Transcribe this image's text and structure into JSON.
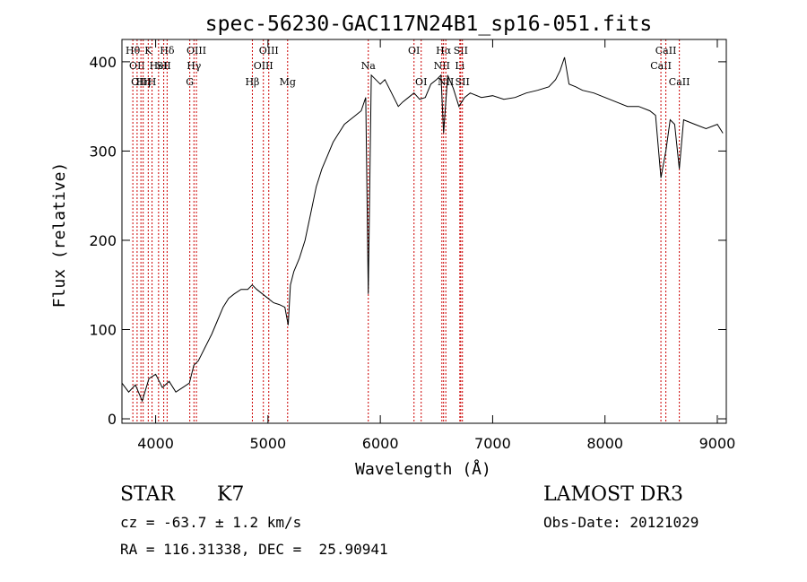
{
  "chart_data": {
    "type": "line",
    "title": "spec-56230-GAC117N24B1_sp16-051.fits",
    "xlabel": "Wavelength (Å)",
    "ylabel": "Flux (relative)",
    "xlim": [
      3700,
      9080
    ],
    "ylim": [
      -5,
      425
    ],
    "xticks": [
      4000,
      5000,
      6000,
      7000,
      8000,
      9000
    ],
    "yticks": [
      0,
      100,
      200,
      300,
      400
    ],
    "line_color": "#000000",
    "marker_color": "#cc0000",
    "grid": false,
    "series": [
      {
        "x": [
          3700,
          3760,
          3820,
          3880,
          3940,
          4000,
          4060,
          4120,
          4180,
          4240,
          4300,
          4340,
          4380,
          4440,
          4500,
          4550,
          4600,
          4650,
          4700,
          4760,
          4820,
          4860,
          4900,
          4950,
          5000,
          5050,
          5100,
          5150,
          5180,
          5200,
          5230,
          5280,
          5330,
          5380,
          5430,
          5480,
          5530,
          5580,
          5630,
          5680,
          5730,
          5780,
          5830,
          5870,
          5893,
          5920,
          5960,
          6000,
          6040,
          6080,
          6120,
          6160,
          6200,
          6250,
          6300,
          6350,
          6400,
          6450,
          6500,
          6540,
          6563,
          6600,
          6650,
          6700,
          6750,
          6800,
          6900,
          7000,
          7100,
          7200,
          7300,
          7400,
          7500,
          7560,
          7600,
          7640,
          7680,
          7740,
          7800,
          7900,
          8000,
          8100,
          8200,
          8300,
          8400,
          8450,
          8498,
          8542,
          8580,
          8620,
          8662,
          8700,
          8800,
          8900,
          9000,
          9050
        ],
        "y": [
          40,
          30,
          38,
          20,
          45,
          50,
          35,
          42,
          30,
          35,
          40,
          60,
          65,
          80,
          95,
          110,
          125,
          135,
          140,
          145,
          145,
          150,
          145,
          140,
          135,
          130,
          128,
          125,
          105,
          150,
          165,
          180,
          200,
          230,
          260,
          280,
          295,
          310,
          320,
          330,
          335,
          340,
          345,
          360,
          140,
          385,
          380,
          375,
          380,
          370,
          360,
          350,
          355,
          360,
          365,
          358,
          360,
          375,
          380,
          385,
          320,
          385,
          370,
          350,
          360,
          365,
          360,
          362,
          358,
          360,
          365,
          368,
          372,
          380,
          390,
          405,
          375,
          372,
          368,
          365,
          360,
          355,
          350,
          350,
          345,
          340,
          270,
          300,
          335,
          330,
          280,
          335,
          330,
          325,
          330,
          320
        ]
      }
    ],
    "line_markers": [
      {
        "x": 3797,
        "label": "Hθ",
        "row": 0
      },
      {
        "x": 3835,
        "label": "OII",
        "row": 1
      },
      {
        "x": 3869,
        "label": "OIII",
        "row": 2
      },
      {
        "x": 3889,
        "label": "Hη",
        "row": 2
      },
      {
        "x": 3934,
        "label": "K",
        "row": 0
      },
      {
        "x": 3968,
        "label": "H",
        "row": 2
      },
      {
        "x": 4026,
        "label": "HeI",
        "row": 1
      },
      {
        "x": 4072,
        "label": "SII",
        "row": 1
      },
      {
        "x": 4102,
        "label": "Hδ",
        "row": 0
      },
      {
        "x": 4304,
        "label": "G",
        "row": 2
      },
      {
        "x": 4341,
        "label": "Hγ",
        "row": 1
      },
      {
        "x": 4363,
        "label": "OIII",
        "row": 0
      },
      {
        "x": 4861,
        "label": "Hβ",
        "row": 2
      },
      {
        "x": 4959,
        "label": "OIII",
        "row": 1
      },
      {
        "x": 5007,
        "label": "OIII",
        "row": 0
      },
      {
        "x": 5175,
        "label": "Mg",
        "row": 2
      },
      {
        "x": 5893,
        "label": "Na",
        "row": 1
      },
      {
        "x": 6300,
        "label": "OI",
        "row": 0
      },
      {
        "x": 6364,
        "label": "OI",
        "row": 2
      },
      {
        "x": 6548,
        "label": "NII",
        "row": 1
      },
      {
        "x": 6563,
        "label": "Hα",
        "row": 0
      },
      {
        "x": 6583,
        "label": "NII",
        "row": 2
      },
      {
        "x": 6708,
        "label": "Li",
        "row": 1
      },
      {
        "x": 6716,
        "label": "SII",
        "row": 0
      },
      {
        "x": 6731,
        "label": "SII",
        "row": 2
      },
      {
        "x": 8498,
        "label": "CaII",
        "row": 1
      },
      {
        "x": 8542,
        "label": "CaII",
        "row": 0
      },
      {
        "x": 8662,
        "label": "CaII",
        "row": 2
      }
    ]
  },
  "info": {
    "class_label": "STAR",
    "subclass_label": "K7",
    "survey": "LAMOST DR3",
    "cz_text": "cz = -63.7 ± 1.2 km/s",
    "obs_date_text": "Obs-Date: 20121029",
    "coords_text": "RA = 116.31338, DEC =  25.90941"
  }
}
